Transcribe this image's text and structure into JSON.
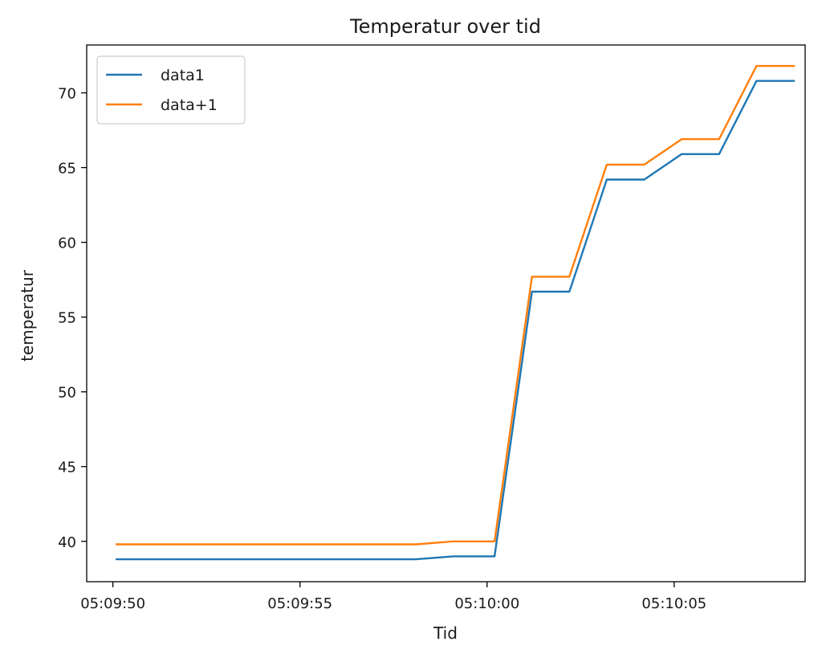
{
  "chart_data": {
    "type": "line",
    "title": "Temperatur over tid",
    "xlabel": "Tid",
    "ylabel": "temperatur",
    "x_ticks": [
      "05:09:50",
      "05:09:55",
      "05:10:00",
      "05:10:05"
    ],
    "y_ticks": [
      40,
      45,
      50,
      55,
      60,
      65,
      70
    ],
    "xlim": [
      "05:09:49.3",
      "05:10:08.5"
    ],
    "ylim": [
      37.3,
      73.2
    ],
    "grid": false,
    "legend_position": "top-left",
    "x": [
      "05:09:50.1",
      "05:09:51.1",
      "05:09:52.1",
      "05:09:53.1",
      "05:09:54.1",
      "05:09:55.1",
      "05:09:56.1",
      "05:09:57.1",
      "05:09:58.1",
      "05:09:59.1",
      "05:10:00.2",
      "05:10:01.2",
      "05:10:02.2",
      "05:10:03.2",
      "05:10:04.2",
      "05:10:05.2",
      "05:10:06.2",
      "05:10:07.2",
      "05:10:08.2"
    ],
    "series": [
      {
        "name": "data1",
        "color": "#1f77b4",
        "values": [
          38.8,
          38.8,
          38.8,
          38.8,
          38.8,
          38.8,
          38.8,
          38.8,
          38.8,
          39.0,
          39.0,
          56.7,
          56.7,
          64.2,
          64.2,
          65.9,
          65.9,
          70.8,
          70.8
        ]
      },
      {
        "name": "data+1",
        "color": "#ff7f0e",
        "values": [
          39.8,
          39.8,
          39.8,
          39.8,
          39.8,
          39.8,
          39.8,
          39.8,
          39.8,
          40.0,
          40.0,
          57.7,
          57.7,
          65.2,
          65.2,
          66.9,
          66.9,
          71.8,
          71.8
        ]
      }
    ]
  }
}
